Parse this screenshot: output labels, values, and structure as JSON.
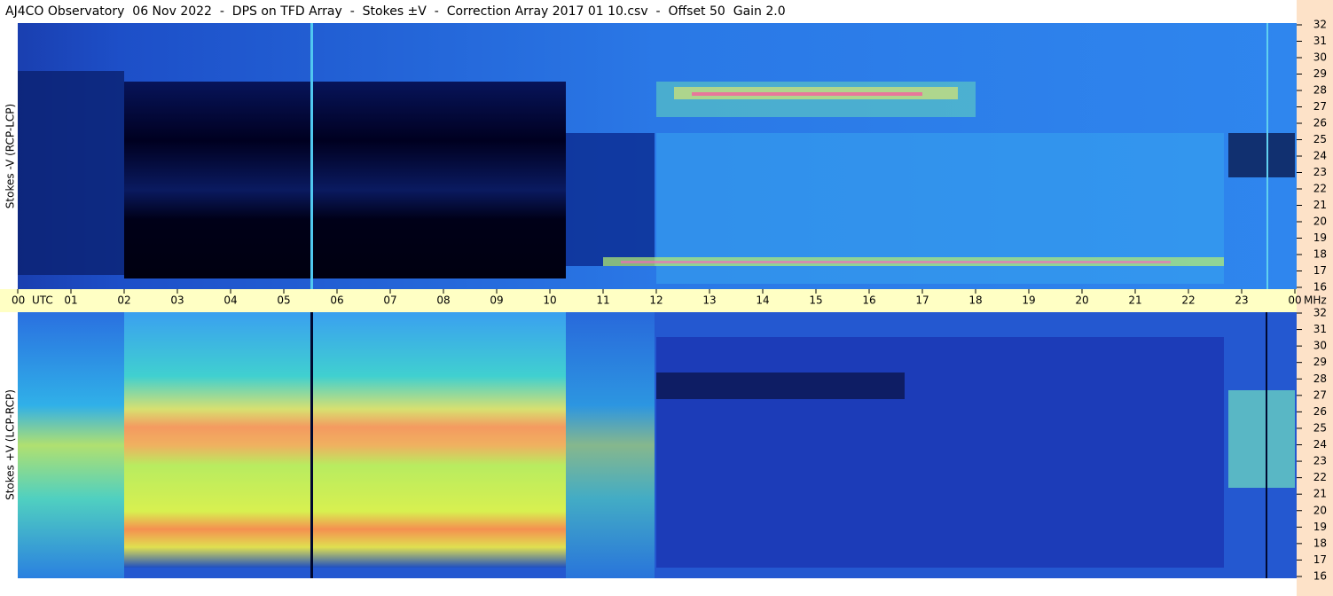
{
  "chart_data": {
    "type": "spectrogram",
    "title": "AJ4CO Observatory  06 Nov 2022  -  DPS on TFD Array  -  Stokes ±V  -  Correction Array 2017 01 10.csv  -  Offset 50  Gain 2.0",
    "panels": [
      {
        "label": "Stokes -V (RCP-LCP)"
      },
      {
        "label": "Stokes +V (LCP-RCP)"
      }
    ],
    "x_unit": "UTC",
    "y_unit": "MHz",
    "xlim": [
      0,
      24
    ],
    "xticks": [
      {
        "value": 0,
        "label": "00"
      },
      {
        "value": 1,
        "label": "01"
      },
      {
        "value": 2,
        "label": "02"
      },
      {
        "value": 3,
        "label": "03"
      },
      {
        "value": 4,
        "label": "04"
      },
      {
        "value": 5,
        "label": "05"
      },
      {
        "value": 6,
        "label": "06"
      },
      {
        "value": 7,
        "label": "07"
      },
      {
        "value": 8,
        "label": "08"
      },
      {
        "value": 9,
        "label": "09"
      },
      10,
      11,
      12,
      13,
      14,
      15,
      16,
      17,
      18,
      19,
      20,
      21,
      22,
      23,
      {
        "value": 24,
        "label": "00"
      }
    ],
    "ylim": [
      16,
      32
    ],
    "yticks": [
      16,
      17,
      18,
      19,
      20,
      21,
      22,
      23,
      24,
      25,
      26,
      27,
      28,
      29,
      30,
      31,
      32
    ]
  }
}
